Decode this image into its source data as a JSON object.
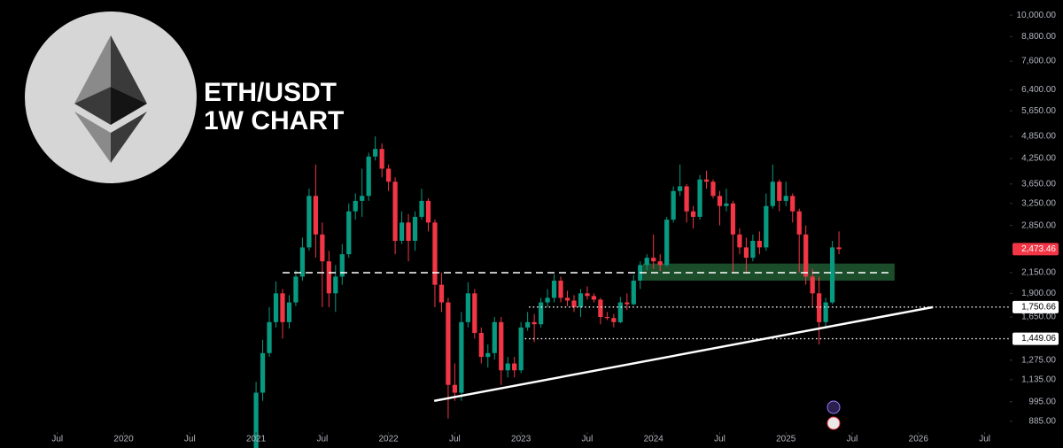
{
  "chart_data": {
    "type": "candlestick",
    "title": "ETH/USDT",
    "subtitle": "1W CHART",
    "log_scale": true,
    "up_color": "#089981",
    "down_color": "#f23645",
    "xlim": [
      2019.067,
      2026.69
    ],
    "ylim": [
      830,
      10950
    ],
    "xticks": [
      {
        "value": 2019.5,
        "label": "Jul"
      },
      2020,
      {
        "value": 2020.5,
        "label": "Jul"
      },
      2021,
      {
        "value": 2021.5,
        "label": "Jul"
      },
      2022,
      {
        "value": 2022.5,
        "label": "Jul"
      },
      2023,
      {
        "value": 2023.5,
        "label": "Jul"
      },
      2024,
      {
        "value": 2024.5,
        "label": "Jul"
      },
      2025,
      {
        "value": 2025.5,
        "label": "Jul"
      },
      2026,
      {
        "value": 2026.5,
        "label": "Jul"
      }
    ],
    "yticks": [
      {
        "value": 10000,
        "label": "10,000.00"
      },
      {
        "value": 8800,
        "label": "8,800.00"
      },
      {
        "value": 7600,
        "label": "7,600.00"
      },
      {
        "value": 6400,
        "label": "6,400.00"
      },
      {
        "value": 5650,
        "label": "5,650.00"
      },
      {
        "value": 4850,
        "label": "4,850.00"
      },
      {
        "value": 4250,
        "label": "4,250.00"
      },
      {
        "value": 3650,
        "label": "3,650.00"
      },
      {
        "value": 3250,
        "label": "3,250.00"
      },
      {
        "value": 2850,
        "label": "2,850.00"
      },
      {
        "value": 2150,
        "label": "2,150.00"
      },
      {
        "value": 1900,
        "label": "1,900.00"
      },
      {
        "value": 1650,
        "label": "1,650.00"
      },
      {
        "value": 1275,
        "label": "1,275.00"
      },
      {
        "value": 1135,
        "label": "1,135.00"
      },
      {
        "value": 995,
        "label": "995.00"
      },
      {
        "value": 885,
        "label": "885.00"
      }
    ],
    "x": [
      2021.0,
      2021.05,
      2021.1,
      2021.15,
      2021.2,
      2021.25,
      2021.3,
      2021.35,
      2021.4,
      2021.45,
      2021.5,
      2021.55,
      2021.6,
      2021.65,
      2021.7,
      2021.75,
      2021.8,
      2021.85,
      2021.9,
      2021.95,
      2022.0,
      2022.05,
      2022.1,
      2022.15,
      2022.2,
      2022.25,
      2022.3,
      2022.35,
      2022.4,
      2022.45,
      2022.5,
      2022.55,
      2022.6,
      2022.65,
      2022.7,
      2022.75,
      2022.8,
      2022.85,
      2022.9,
      2022.95,
      2023.0,
      2023.05,
      2023.1,
      2023.15,
      2023.2,
      2023.25,
      2023.3,
      2023.35,
      2023.4,
      2023.45,
      2023.5,
      2023.55,
      2023.6,
      2023.65,
      2023.7,
      2023.75,
      2023.8,
      2023.85,
      2023.9,
      2023.95,
      2024.0,
      2024.05,
      2024.1,
      2024.15,
      2024.2,
      2024.25,
      2024.3,
      2024.35,
      2024.4,
      2024.45,
      2024.5,
      2024.55,
      2024.6,
      2024.65,
      2024.7,
      2024.75,
      2024.8,
      2024.85,
      2024.9,
      2024.95,
      2025.0,
      2025.05,
      2025.1,
      2025.15,
      2025.2,
      2025.25,
      2025.3,
      2025.35,
      2025.4
    ],
    "open": [
      730,
      1050,
      1330,
      1600,
      1900,
      1600,
      1800,
      2100,
      2500,
      3400,
      2700,
      2300,
      1900,
      2100,
      2400,
      3100,
      3300,
      3400,
      4300,
      4500,
      4000,
      3700,
      2600,
      2900,
      2600,
      3000,
      3300,
      2900,
      2000,
      1800,
      1100,
      1050,
      1600,
      1900,
      1500,
      1300,
      1330,
      1600,
      1200,
      1250,
      1200,
      1550,
      1600,
      1580,
      1800,
      1850,
      2050,
      1850,
      1820,
      1750,
      1900,
      1870,
      1830,
      1650,
      1640,
      1600,
      1800,
      1780,
      2050,
      2250,
      2350,
      2300,
      2250,
      2950,
      3500,
      3600,
      3100,
      3000,
      3750,
      3700,
      3400,
      3200,
      3250,
      2700,
      2500,
      2350,
      2600,
      2500,
      3200,
      3700,
      3300,
      3400,
      3100,
      2700,
      2100,
      1900,
      1600,
      1800,
      2500
    ],
    "high": [
      1120,
      1440,
      1750,
      2040,
      1950,
      1880,
      2180,
      2650,
      3550,
      4100,
      2900,
      2450,
      2250,
      2550,
      3250,
      3450,
      4000,
      4400,
      4850,
      4650,
      4100,
      3800,
      3100,
      3050,
      3100,
      3550,
      3350,
      2950,
      2150,
      1850,
      1250,
      1700,
      2030,
      1950,
      1550,
      1400,
      1650,
      1650,
      1300,
      1300,
      1600,
      1700,
      1680,
      1850,
      1950,
      2130,
      2100,
      1930,
      1880,
      1950,
      1980,
      1900,
      1850,
      1700,
      1680,
      1860,
      1900,
      2120,
      2300,
      2400,
      2700,
      2400,
      3000,
      3600,
      4100,
      3650,
      3200,
      3850,
      3950,
      3750,
      3500,
      3550,
      3300,
      2800,
      2650,
      2700,
      2750,
      3450,
      4100,
      3750,
      3700,
      3450,
      3150,
      2850,
      2200,
      2100,
      1850,
      2600,
      2750
    ],
    "low": [
      720,
      1000,
      1300,
      1550,
      1450,
      1540,
      1760,
      2050,
      2450,
      2350,
      1750,
      1750,
      1700,
      2000,
      2350,
      2950,
      3000,
      3300,
      4200,
      3800,
      3500,
      2400,
      2550,
      2300,
      2450,
      2950,
      2750,
      1750,
      1700,
      900,
      1000,
      1000,
      1550,
      1450,
      1250,
      1220,
      1280,
      1100,
      1150,
      1150,
      1180,
      1520,
      1420,
      1550,
      1750,
      1800,
      1800,
      1760,
      1700,
      1650,
      1830,
      1800,
      1580,
      1620,
      1550,
      1590,
      1720,
      1770,
      1950,
      2180,
      2200,
      2170,
      2230,
      2900,
      3400,
      2900,
      2800,
      2950,
      3550,
      3350,
      2850,
      3100,
      2150,
      2400,
      2150,
      2300,
      2400,
      2450,
      3150,
      3100,
      3200,
      2900,
      2150,
      2000,
      1750,
      1400,
      1540,
      1780,
      2400
    ],
    "close": [
      1050,
      1330,
      1600,
      1900,
      1600,
      1800,
      2100,
      2500,
      3400,
      2700,
      2300,
      1900,
      2100,
      2400,
      3100,
      3300,
      3400,
      4300,
      4500,
      4000,
      3700,
      2600,
      2900,
      2600,
      3000,
      3300,
      2900,
      2000,
      1800,
      1100,
      1050,
      1600,
      1900,
      1500,
      1300,
      1330,
      1600,
      1200,
      1250,
      1200,
      1550,
      1600,
      1580,
      1800,
      1850,
      2050,
      1850,
      1820,
      1750,
      1900,
      1870,
      1830,
      1650,
      1640,
      1600,
      1800,
      1780,
      2050,
      2250,
      2350,
      2300,
      2250,
      2950,
      3500,
      3600,
      3100,
      3000,
      3750,
      3700,
      3400,
      3200,
      3250,
      2700,
      2500,
      2350,
      2600,
      2500,
      3200,
      3700,
      3300,
      3400,
      3100,
      2700,
      2100,
      1900,
      1600,
      1800,
      2500,
      2473.46
    ],
    "current_price": {
      "value": 2473.46,
      "label": "2,473.46",
      "color": "#f23645"
    },
    "levels": [
      {
        "value": 1750.66,
        "label": "1,750.66",
        "x_start": 2023.06
      },
      {
        "value": 1449.06,
        "label": "1,449.06",
        "x_start": 2023.03
      }
    ],
    "dashed_level": {
      "value": 2150,
      "x": [
        2021.2,
        2025.78
      ]
    },
    "zone": {
      "x": [
        2023.92,
        2025.82
      ],
      "y": [
        2050,
        2270
      ],
      "color": "#1b4d2a"
    },
    "trendline": {
      "x": [
        2022.345,
        2026.11
      ],
      "y": [
        1000,
        1750
      ]
    }
  }
}
